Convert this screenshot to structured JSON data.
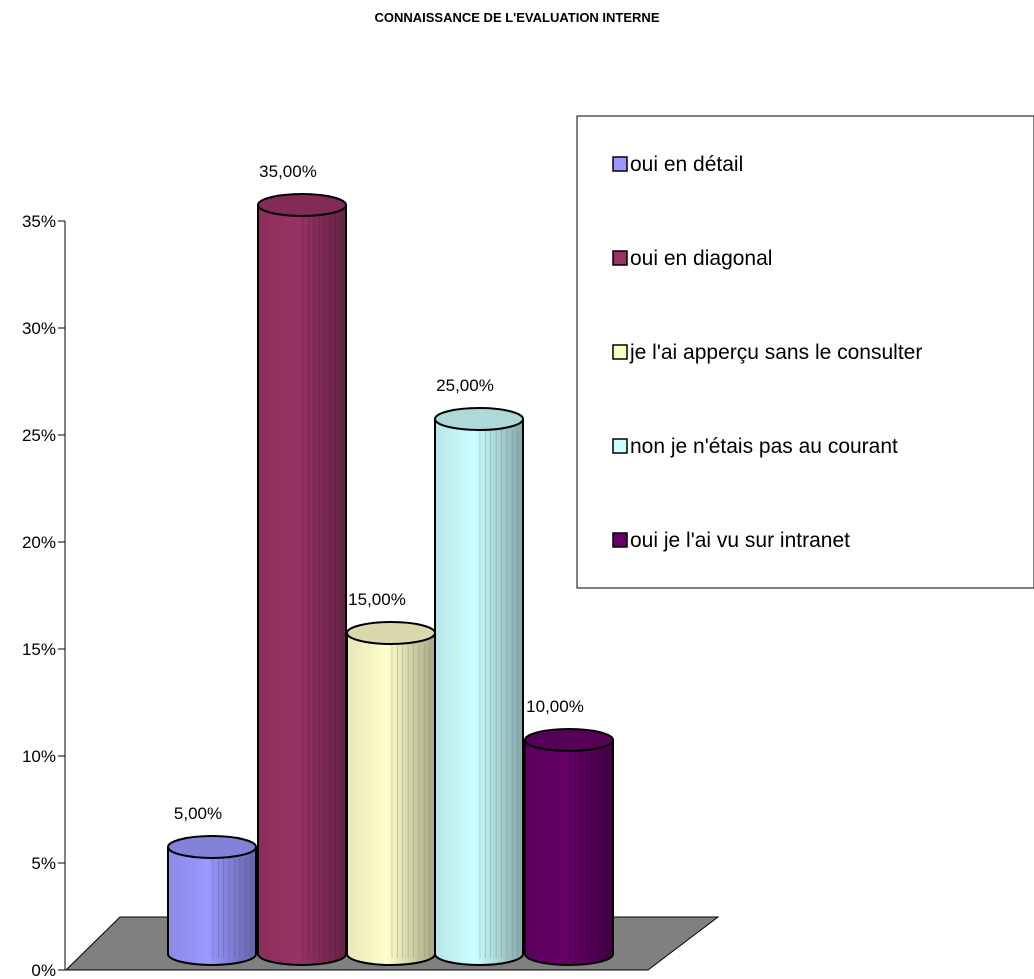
{
  "chart_data": {
    "type": "bar",
    "title": "CONNAISSANCE DE L'EVALUATION INTERNE",
    "xlabel": "",
    "ylabel": "",
    "ylim": [
      0,
      0.35
    ],
    "y_ticks": [
      "0%",
      "5%",
      "10%",
      "15%",
      "20%",
      "25%",
      "30%",
      "35%"
    ],
    "categories": [
      "oui en détail",
      "oui en diagonal",
      "je l'ai apperçu sans le consulter",
      "non je n'étais pas au courant",
      "oui je l'ai vu sur intranet"
    ],
    "values": [
      0.05,
      0.35,
      0.15,
      0.25,
      0.1
    ],
    "data_labels": [
      "5,00%",
      "35,00%",
      "15,00%",
      "25,00%",
      "10,00%"
    ],
    "colors": [
      "#9999ff",
      "#993366",
      "#ffffcc",
      "#ccffff",
      "#660066"
    ],
    "bar_shape": "cylinder",
    "floor_color": "#808080",
    "grid": false,
    "legend_position": "right",
    "legend": [
      "oui en détail",
      "oui en diagonal",
      "je l'ai apperçu sans le consulter",
      "non je n'étais pas au courant",
      "oui je l'ai vu sur intranet"
    ]
  }
}
